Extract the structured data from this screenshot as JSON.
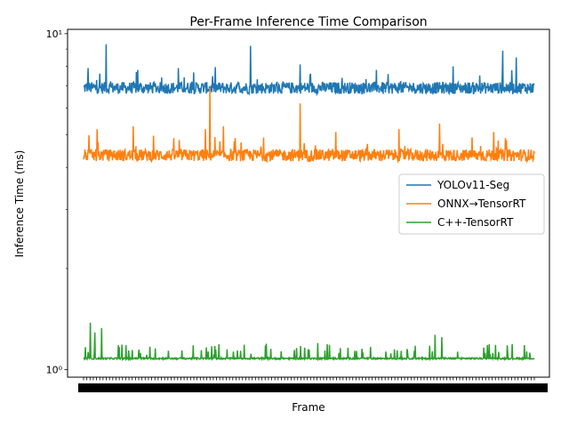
{
  "chart_data": {
    "type": "line",
    "title": "Per-Frame Inference Time Comparison",
    "xlabel": "Frame",
    "ylabel": "Inference Time (ms)",
    "yscale": "log",
    "ylim": [
      0.95,
      10.3
    ],
    "yticks": [
      {
        "value": 1,
        "label": "10⁰"
      },
      {
        "value": 10,
        "label": "10¹"
      }
    ],
    "frames": 1000,
    "xtick_labels_note": "x tick labels overlap into a solid black band",
    "legend": "center-right",
    "grid": false,
    "series": [
      {
        "name": "YOLOv11-Seg",
        "color": "#1f77b4",
        "baseline_ms": 6.9,
        "jitter_ms": 0.28,
        "spikes": [
          [
            0.01,
            7.9
          ],
          [
            0.05,
            9.3
          ],
          [
            0.12,
            7.8
          ],
          [
            0.21,
            7.9
          ],
          [
            0.37,
            9.2
          ],
          [
            0.48,
            8.1
          ],
          [
            0.65,
            7.8
          ],
          [
            0.82,
            8.0
          ],
          [
            0.93,
            8.9
          ],
          [
            0.96,
            8.5
          ]
        ]
      },
      {
        "name": "ONNX→TensorRT",
        "color": "#ff7f0e",
        "baseline_ms": 4.35,
        "jitter_ms": 0.18,
        "spikes": [
          [
            0.03,
            5.2
          ],
          [
            0.11,
            5.3
          ],
          [
            0.27,
            5.2
          ],
          [
            0.28,
            6.9
          ],
          [
            0.31,
            5.3
          ],
          [
            0.48,
            6.2
          ],
          [
            0.56,
            5.1
          ],
          [
            0.7,
            5.2
          ],
          [
            0.79,
            5.4
          ],
          [
            0.91,
            5.1
          ]
        ]
      },
      {
        "name": "C++-TensorRT",
        "color": "#2ca02c",
        "baseline_ms": 1.08,
        "jitter_ms": 0.006,
        "spikes": [
          [
            0.015,
            1.38
          ],
          [
            0.025,
            1.29
          ],
          [
            0.04,
            1.33
          ],
          [
            0.3,
            1.19
          ],
          [
            0.52,
            1.2
          ],
          [
            0.78,
            1.27
          ],
          [
            0.795,
            1.25
          ],
          [
            0.9,
            1.19
          ]
        ]
      }
    ]
  }
}
